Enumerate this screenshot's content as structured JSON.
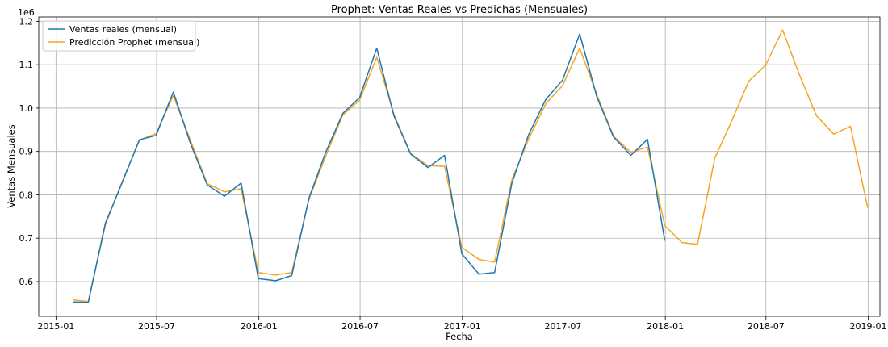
{
  "chart_data": {
    "type": "line",
    "title": "Prophet: Ventas Reales vs Predichas (Mensuales)",
    "xlabel": "Fecha",
    "ylabel": "Ventas Mensuales",
    "y_offset_label": "1e6",
    "xlim": [
      "2014-12-01",
      "2019-01-22"
    ],
    "ylim": [
      0.52,
      1.21
    ],
    "x_ticks": [
      {
        "date": "2015-01-01",
        "label": "2015-01"
      },
      {
        "date": "2015-07-01",
        "label": "2015-07"
      },
      {
        "date": "2016-01-01",
        "label": "2016-01"
      },
      {
        "date": "2016-07-01",
        "label": "2016-07"
      },
      {
        "date": "2017-01-01",
        "label": "2017-01"
      },
      {
        "date": "2017-07-01",
        "label": "2017-07"
      },
      {
        "date": "2018-01-01",
        "label": "2018-01"
      },
      {
        "date": "2018-07-01",
        "label": "2018-07"
      },
      {
        "date": "2019-01-01",
        "label": "2019-01"
      }
    ],
    "y_ticks": [
      {
        "value": 0.6,
        "label": "0.6"
      },
      {
        "value": 0.7,
        "label": "0.7"
      },
      {
        "value": 0.8,
        "label": "0.8"
      },
      {
        "value": 0.9,
        "label": "0.9"
      },
      {
        "value": 1.0,
        "label": "1.0"
      },
      {
        "value": 1.1,
        "label": "1.1"
      },
      {
        "value": 1.2,
        "label": "1.2"
      }
    ],
    "grid": true,
    "legend_position": "top-left",
    "series": [
      {
        "name": "Ventas reales (mensual)",
        "color": "#1f77b4",
        "x": [
          "2015-01-31",
          "2015-02-28",
          "2015-03-31",
          "2015-04-30",
          "2015-05-31",
          "2015-06-30",
          "2015-07-31",
          "2015-08-31",
          "2015-09-30",
          "2015-10-31",
          "2015-11-30",
          "2015-12-31",
          "2016-01-31",
          "2016-02-29",
          "2016-03-31",
          "2016-04-30",
          "2016-05-31",
          "2016-06-30",
          "2016-07-31",
          "2016-08-31",
          "2016-09-30",
          "2016-10-31",
          "2016-11-30",
          "2016-12-31",
          "2017-01-31",
          "2017-02-28",
          "2017-03-31",
          "2017-04-30",
          "2017-05-31",
          "2017-06-30",
          "2017-07-31",
          "2017-08-31",
          "2017-09-30",
          "2017-10-31",
          "2017-11-30",
          "2017-12-31"
        ],
        "values": [
          0.553,
          0.552,
          0.735,
          0.828,
          0.927,
          0.937,
          1.037,
          0.918,
          0.823,
          0.797,
          0.827,
          0.607,
          0.602,
          0.614,
          0.792,
          0.898,
          0.988,
          1.024,
          1.138,
          0.981,
          0.894,
          0.863,
          0.891,
          0.664,
          0.617,
          0.621,
          0.827,
          0.938,
          1.02,
          1.064,
          1.171,
          1.025,
          0.933,
          0.891,
          0.928,
          0.694
        ]
      },
      {
        "name": "Predicción Prophet (mensual)",
        "color": "#f5a623",
        "x": [
          "2015-01-31",
          "2015-02-28",
          "2015-03-31",
          "2015-04-30",
          "2015-05-31",
          "2015-06-30",
          "2015-07-31",
          "2015-08-31",
          "2015-09-30",
          "2015-10-31",
          "2015-11-30",
          "2015-12-31",
          "2016-01-31",
          "2016-02-29",
          "2016-03-31",
          "2016-04-30",
          "2016-05-31",
          "2016-06-30",
          "2016-07-31",
          "2016-08-31",
          "2016-09-30",
          "2016-10-31",
          "2016-11-30",
          "2016-12-31",
          "2017-01-31",
          "2017-02-28",
          "2017-03-31",
          "2017-04-30",
          "2017-05-31",
          "2017-06-30",
          "2017-07-31",
          "2017-08-31",
          "2017-09-30",
          "2017-10-31",
          "2017-11-30",
          "2017-12-31",
          "2018-01-31",
          "2018-02-28",
          "2018-03-31",
          "2018-04-30",
          "2018-05-31",
          "2018-06-30",
          "2018-07-31",
          "2018-08-31",
          "2018-09-30",
          "2018-10-31",
          "2018-11-30",
          "2018-12-31"
        ],
        "values": [
          0.558,
          0.554,
          0.731,
          0.83,
          0.926,
          0.941,
          1.029,
          0.925,
          0.826,
          0.807,
          0.814,
          0.621,
          0.615,
          0.621,
          0.79,
          0.889,
          0.984,
          1.018,
          1.117,
          0.985,
          0.895,
          0.867,
          0.866,
          0.679,
          0.651,
          0.645,
          0.835,
          0.928,
          1.01,
          1.052,
          1.138,
          1.03,
          0.935,
          0.898,
          0.91,
          0.729,
          0.69,
          0.686,
          0.885,
          0.969,
          1.062,
          1.098,
          1.18,
          1.074,
          0.982,
          0.94,
          0.958,
          0.77
        ]
      }
    ]
  }
}
